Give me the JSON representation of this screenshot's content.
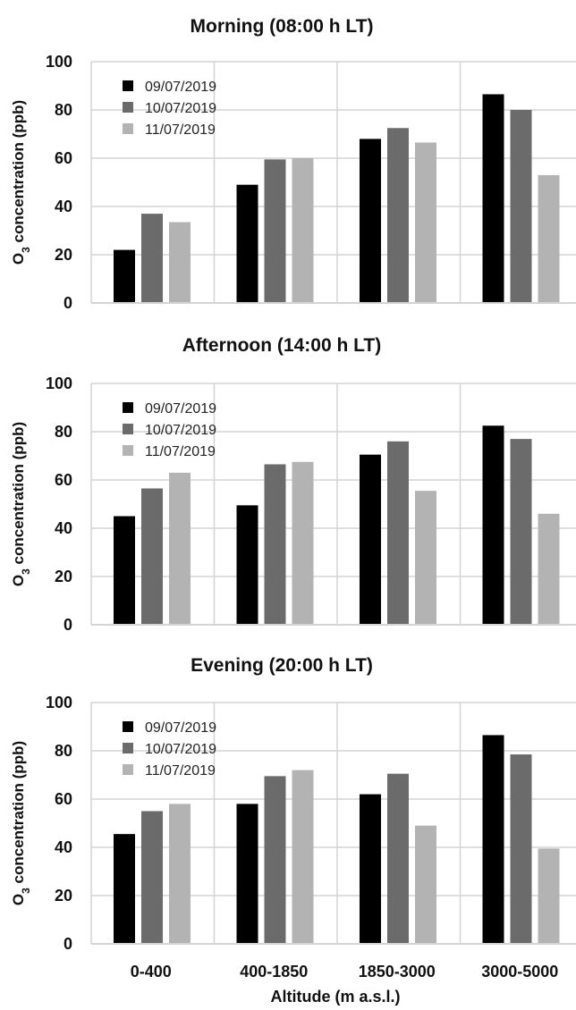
{
  "chart_data": [
    {
      "type": "bar",
      "title": "Morning (08:00 h LT)",
      "ylabel_main": "O",
      "ylabel_sub": "3",
      "ylabel_rest": " concentration (ppb)",
      "ylim": [
        0,
        100
      ],
      "yticks": [
        "0",
        "20",
        "40",
        "60",
        "80",
        "100"
      ],
      "grid": true,
      "legend": "top-left",
      "categories": [
        "0-400",
        "400-1850",
        "1850-3000",
        "3000-5000"
      ],
      "series": [
        {
          "name": "09/07/2019",
          "color": "#000000",
          "values": [
            22,
            49,
            68,
            86.5
          ]
        },
        {
          "name": "10/07/2019",
          "color": "#6b6b6b",
          "values": [
            37,
            59.5,
            72.5,
            80
          ]
        },
        {
          "name": "11/07/2019",
          "color": "#b3b3b3",
          "values": [
            33.5,
            60,
            66.5,
            53
          ]
        }
      ]
    },
    {
      "type": "bar",
      "title": "Afternoon (14:00 h LT)",
      "ylabel_main": "O",
      "ylabel_sub": "3",
      "ylabel_rest": " concentration (ppb)",
      "ylim": [
        0,
        100
      ],
      "yticks": [
        "0",
        "20",
        "40",
        "60",
        "80",
        "100"
      ],
      "grid": true,
      "legend": "top-left",
      "categories": [
        "0-400",
        "400-1850",
        "1850-3000",
        "3000-5000"
      ],
      "series": [
        {
          "name": "09/07/2019",
          "color": "#000000",
          "values": [
            45,
            49.5,
            70.5,
            82.5
          ]
        },
        {
          "name": "10/07/2019",
          "color": "#6b6b6b",
          "values": [
            56.5,
            66.5,
            76,
            77
          ]
        },
        {
          "name": "11/07/2019",
          "color": "#b3b3b3",
          "values": [
            63,
            67.5,
            55.5,
            46
          ]
        }
      ]
    },
    {
      "type": "bar",
      "title": "Evening (20:00 h LT)",
      "ylabel_main": "O",
      "ylabel_sub": "3",
      "ylabel_rest": " concentration (ppb)",
      "ylim": [
        0,
        100
      ],
      "yticks": [
        "0",
        "20",
        "40",
        "60",
        "80",
        "100"
      ],
      "grid": true,
      "legend": "top-left",
      "categories": [
        "0-400",
        "400-1850",
        "1850-3000",
        "3000-5000"
      ],
      "xlabel": "Altitude (m a.s.l.)",
      "series": [
        {
          "name": "09/07/2019",
          "color": "#000000",
          "values": [
            45.5,
            58,
            62,
            86.5
          ]
        },
        {
          "name": "10/07/2019",
          "color": "#6b6b6b",
          "values": [
            55,
            69.5,
            70.5,
            78.5
          ]
        },
        {
          "name": "11/07/2019",
          "color": "#b3b3b3",
          "values": [
            58,
            72,
            49,
            39.5
          ]
        }
      ]
    }
  ]
}
